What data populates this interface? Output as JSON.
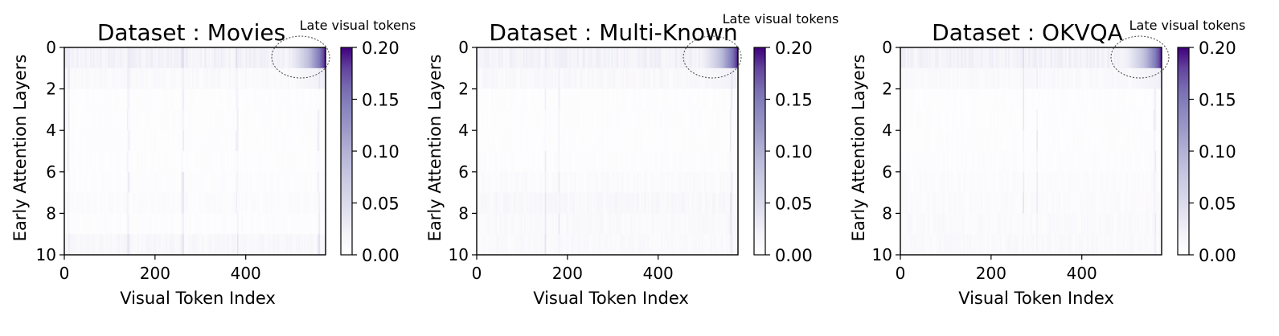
{
  "chart_data": [
    {
      "type": "heatmap",
      "title": "Dataset : Movies",
      "xlabel": "Visual Token Index",
      "ylabel": "Early Attention Layers",
      "x_ticks": [
        "0",
        "200",
        "400"
      ],
      "y_ticks": [
        "0",
        "2",
        "4",
        "6",
        "8",
        "10"
      ],
      "xlim": [
        0,
        576
      ],
      "ylim": [
        10,
        0
      ],
      "colorbar": {
        "min": 0,
        "max": 0.2,
        "ticks": [
          "0.00",
          "0.05",
          "0.10",
          "0.15",
          "0.20"
        ],
        "cmap": "Purples"
      },
      "annotation": "Late visual tokens",
      "layer_base_attention": [
        0.02,
        0.01,
        0.004,
        0.004,
        0.004,
        0.004,
        0.005,
        0.007,
        0.005,
        0.012
      ],
      "late_token_peak": 0.2,
      "late_token_start": 450,
      "bright_columns": [
        8,
        140,
        260,
        380,
        560
      ]
    },
    {
      "type": "heatmap",
      "title": "Dataset : Multi-Known",
      "xlabel": "Visual Token Index",
      "ylabel": "Early Attention Layers",
      "x_ticks": [
        "0",
        "200",
        "400"
      ],
      "y_ticks": [
        "0",
        "2",
        "4",
        "6",
        "8",
        "10"
      ],
      "xlim": [
        0,
        576
      ],
      "ylim": [
        10,
        0
      ],
      "colorbar": {
        "min": 0,
        "max": 0.2,
        "ticks": [
          "0.00",
          "0.05",
          "0.10",
          "0.15",
          "0.20"
        ],
        "cmap": "Purples"
      },
      "annotation": "Late visual tokens",
      "layer_base_attention": [
        0.02,
        0.012,
        0.004,
        0.004,
        0.004,
        0.005,
        0.008,
        0.012,
        0.01,
        0.01
      ],
      "late_token_peak": 0.2,
      "late_token_start": 450,
      "bright_columns": [
        150,
        180,
        560
      ]
    },
    {
      "type": "heatmap",
      "title": "Dataset : OKVQA",
      "xlabel": "Visual Token Index",
      "ylabel": "Early Attention Layers",
      "x_ticks": [
        "0",
        "200",
        "400"
      ],
      "y_ticks": [
        "0",
        "2",
        "4",
        "6",
        "8",
        "10"
      ],
      "xlim": [
        0,
        576
      ],
      "ylim": [
        10,
        0
      ],
      "colorbar": {
        "min": 0,
        "max": 0.2,
        "ticks": [
          "0.00",
          "0.05",
          "0.10",
          "0.15",
          "0.20"
        ],
        "cmap": "Purples"
      },
      "annotation": "Late visual tokens",
      "layer_base_attention": [
        0.02,
        0.01,
        0.004,
        0.004,
        0.004,
        0.005,
        0.007,
        0.008,
        0.009,
        0.01
      ],
      "late_token_peak": 0.2,
      "late_token_start": 450,
      "bright_columns": [
        270,
        300,
        560
      ]
    }
  ]
}
